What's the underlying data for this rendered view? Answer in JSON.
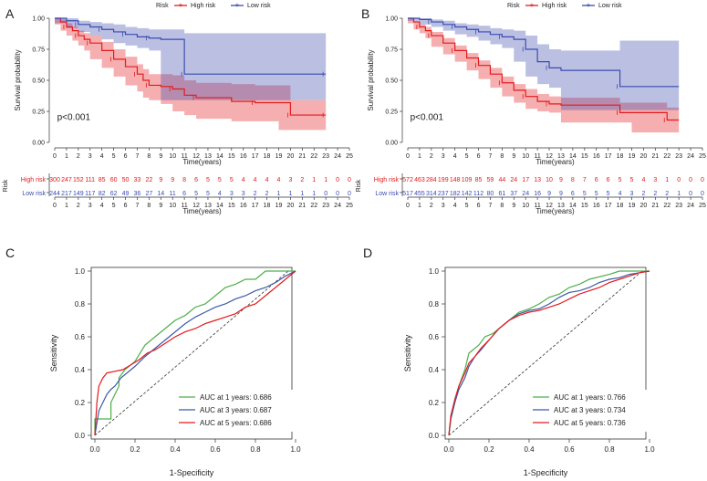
{
  "chart_data": [
    {
      "id": "A",
      "type": "line",
      "subtype": "kaplan-meier",
      "panel_label": "A",
      "legend_title": "Risk",
      "legend": [
        "High risk",
        "Low risk"
      ],
      "xlabel": "Time(years)",
      "ylabel": "Survival probability",
      "xlim": [
        0,
        25
      ],
      "ylim": [
        0,
        1
      ],
      "xticks": [
        "0",
        "1",
        "2",
        "3",
        "4",
        "5",
        "6",
        "7",
        "8",
        "9",
        "10",
        "11",
        "12",
        "13",
        "14",
        "15",
        "16",
        "17",
        "18",
        "19",
        "20",
        "21",
        "22",
        "23",
        "24",
        "25"
      ],
      "yticks": [
        "0.00",
        "0.25",
        "0.50",
        "0.75",
        "1.00"
      ],
      "pvalue": "p<0.001",
      "series": [
        {
          "name": "High risk",
          "color": "#e41a1c",
          "x": [
            0,
            0.5,
            1,
            1.5,
            2,
            2.5,
            3,
            4,
            5,
            6,
            7,
            7.5,
            8,
            9,
            10,
            11,
            12,
            15,
            17,
            19,
            20,
            21,
            23
          ],
          "y": [
            1.0,
            0.97,
            0.93,
            0.9,
            0.86,
            0.83,
            0.8,
            0.74,
            0.67,
            0.61,
            0.55,
            0.5,
            0.46,
            0.45,
            0.43,
            0.38,
            0.36,
            0.33,
            0.32,
            0.32,
            0.22,
            0.22,
            0.22
          ],
          "lower": [
            1.0,
            0.95,
            0.9,
            0.86,
            0.82,
            0.78,
            0.74,
            0.67,
            0.6,
            0.53,
            0.46,
            0.41,
            0.36,
            0.34,
            0.31,
            0.25,
            0.22,
            0.19,
            0.17,
            0.17,
            0.1,
            0.1,
            0.1
          ],
          "upper": [
            1.0,
            0.99,
            0.96,
            0.93,
            0.9,
            0.88,
            0.86,
            0.81,
            0.75,
            0.69,
            0.63,
            0.59,
            0.55,
            0.55,
            0.54,
            0.5,
            0.48,
            0.47,
            0.46,
            0.46,
            0.34,
            0.34,
            0.34
          ]
        },
        {
          "name": "Low risk",
          "color": "#3b4bb0",
          "x": [
            0,
            1,
            2,
            3,
            4,
            5,
            6,
            7,
            8,
            9,
            11,
            12,
            23
          ],
          "y": [
            1.0,
            0.98,
            0.95,
            0.93,
            0.91,
            0.89,
            0.87,
            0.85,
            0.84,
            0.83,
            0.55,
            0.55,
            0.55
          ],
          "lower": [
            1.0,
            0.96,
            0.92,
            0.89,
            0.86,
            0.83,
            0.8,
            0.78,
            0.76,
            0.74,
            0.34,
            0.34,
            0.34
          ],
          "upper": [
            1.0,
            1.0,
            0.98,
            0.97,
            0.96,
            0.95,
            0.93,
            0.92,
            0.91,
            0.91,
            0.88,
            0.88,
            0.88
          ]
        }
      ],
      "risk_table": {
        "title": "Risk",
        "rows": [
          {
            "label": "High risk",
            "color": "#e41a1c",
            "values": [
              "300",
              "247",
              "152",
              "111",
              "85",
              "60",
              "50",
              "33",
              "22",
              "9",
              "9",
              "8",
              "6",
              "5",
              "5",
              "5",
              "4",
              "4",
              "4",
              "4",
              "3",
              "2",
              "1",
              "1",
              "0",
              "0"
            ]
          },
          {
            "label": "Low risk",
            "color": "#3b4bb0",
            "values": [
              "244",
              "217",
              "149",
              "117",
              "82",
              "62",
              "49",
              "36",
              "27",
              "14",
              "11",
              "6",
              "5",
              "5",
              "4",
              "3",
              "3",
              "2",
              "2",
              "1",
              "1",
              "1",
              "1",
              "0",
              "0",
              "0"
            ]
          }
        ],
        "xlabel": "Time(years)"
      }
    },
    {
      "id": "B",
      "type": "line",
      "subtype": "kaplan-meier",
      "panel_label": "B",
      "legend_title": "Risk",
      "legend": [
        "High risk",
        "Low risk"
      ],
      "xlabel": "Time(years)",
      "ylabel": "Survival probability",
      "xlim": [
        0,
        25
      ],
      "ylim": [
        0,
        1
      ],
      "xticks": [
        "0",
        "1",
        "2",
        "3",
        "4",
        "5",
        "6",
        "7",
        "8",
        "9",
        "10",
        "11",
        "12",
        "13",
        "14",
        "15",
        "16",
        "17",
        "18",
        "19",
        "20",
        "21",
        "22",
        "23",
        "24",
        "25"
      ],
      "yticks": [
        "0.00",
        "0.25",
        "0.50",
        "0.75",
        "1.00"
      ],
      "pvalue": "p<0.001",
      "series": [
        {
          "name": "High risk",
          "color": "#e41a1c",
          "x": [
            0,
            0.5,
            1,
            1.5,
            2,
            3,
            4,
            5,
            6,
            7,
            8,
            9,
            10,
            11,
            12,
            13,
            18,
            19,
            22,
            23
          ],
          "y": [
            1.0,
            0.97,
            0.93,
            0.9,
            0.86,
            0.8,
            0.74,
            0.68,
            0.62,
            0.55,
            0.48,
            0.42,
            0.37,
            0.33,
            0.31,
            0.3,
            0.24,
            0.24,
            0.18,
            0.18
          ],
          "lower": [
            1.0,
            0.96,
            0.91,
            0.88,
            0.84,
            0.77,
            0.71,
            0.65,
            0.58,
            0.51,
            0.44,
            0.37,
            0.32,
            0.27,
            0.25,
            0.24,
            0.16,
            0.16,
            0.08,
            0.08
          ],
          "upper": [
            1.0,
            0.98,
            0.95,
            0.93,
            0.89,
            0.84,
            0.78,
            0.72,
            0.66,
            0.6,
            0.53,
            0.47,
            0.43,
            0.39,
            0.37,
            0.36,
            0.32,
            0.32,
            0.28,
            0.28
          ]
        },
        {
          "name": "Low risk",
          "color": "#3b4bb0",
          "x": [
            0,
            1,
            2,
            3,
            4,
            5,
            6,
            7,
            8,
            9,
            10,
            11,
            12,
            13,
            18,
            23
          ],
          "y": [
            1.0,
            0.99,
            0.97,
            0.95,
            0.93,
            0.91,
            0.89,
            0.87,
            0.85,
            0.83,
            0.75,
            0.65,
            0.6,
            0.58,
            0.45,
            0.45
          ],
          "lower": [
            1.0,
            0.98,
            0.95,
            0.93,
            0.9,
            0.87,
            0.85,
            0.82,
            0.79,
            0.76,
            0.65,
            0.53,
            0.47,
            0.44,
            0.26,
            0.26
          ],
          "upper": [
            1.0,
            1.0,
            0.99,
            0.98,
            0.96,
            0.95,
            0.94,
            0.92,
            0.91,
            0.9,
            0.86,
            0.79,
            0.75,
            0.74,
            0.82,
            0.82
          ]
        }
      ],
      "risk_table": {
        "title": "Risk",
        "rows": [
          {
            "label": "High risk",
            "color": "#e41a1c",
            "values": [
              "572",
              "463",
              "284",
              "199",
              "148",
              "109",
              "85",
              "59",
              "44",
              "24",
              "17",
              "13",
              "10",
              "9",
              "8",
              "7",
              "6",
              "6",
              "5",
              "5",
              "4",
              "3",
              "1",
              "0",
              "0",
              "0"
            ]
          },
          {
            "label": "Low risk",
            "color": "#3b4bb0",
            "values": [
              "517",
              "455",
              "314",
              "237",
              "182",
              "142",
              "112",
              "80",
              "61",
              "37",
              "24",
              "16",
              "9",
              "9",
              "6",
              "5",
              "5",
              "5",
              "4",
              "3",
              "2",
              "2",
              "2",
              "1",
              "0",
              "0"
            ]
          }
        ],
        "xlabel": "Time(years)"
      }
    },
    {
      "id": "C",
      "type": "line",
      "subtype": "roc",
      "panel_label": "C",
      "xlabel": "1-Specificity",
      "ylabel": "Sensitivity",
      "xlim": [
        0,
        1
      ],
      "ylim": [
        0,
        1
      ],
      "xticks": [
        "0.0",
        "0.2",
        "0.4",
        "0.6",
        "0.8",
        "1.0"
      ],
      "yticks": [
        "0.0",
        "0.2",
        "0.4",
        "0.6",
        "0.8",
        "1.0"
      ],
      "series": [
        {
          "name": "AUC at 1 years: 0.686",
          "color": "#4daf4a",
          "x": [
            0,
            0,
            0.03,
            0.08,
            0.08,
            0.12,
            0.12,
            0.15,
            0.2,
            0.25,
            0.3,
            0.35,
            0.4,
            0.45,
            0.5,
            0.55,
            0.6,
            0.65,
            0.7,
            0.75,
            0.8,
            0.85,
            0.9,
            1.0
          ],
          "y": [
            0,
            0.1,
            0.1,
            0.1,
            0.2,
            0.3,
            0.35,
            0.4,
            0.45,
            0.55,
            0.6,
            0.65,
            0.7,
            0.73,
            0.78,
            0.8,
            0.85,
            0.9,
            0.92,
            0.95,
            0.95,
            1.0,
            1.0,
            1.0
          ]
        },
        {
          "name": "AUC at 3 years: 0.687",
          "color": "#3b5aa6",
          "x": [
            0,
            0.02,
            0.04,
            0.06,
            0.08,
            0.1,
            0.13,
            0.16,
            0.2,
            0.25,
            0.3,
            0.35,
            0.4,
            0.45,
            0.5,
            0.55,
            0.6,
            0.65,
            0.7,
            0.75,
            0.8,
            0.85,
            0.9,
            0.95,
            1.0
          ],
          "y": [
            0,
            0.15,
            0.2,
            0.25,
            0.28,
            0.3,
            0.35,
            0.38,
            0.42,
            0.48,
            0.53,
            0.58,
            0.63,
            0.68,
            0.72,
            0.75,
            0.78,
            0.8,
            0.83,
            0.85,
            0.88,
            0.9,
            0.93,
            0.97,
            1.0
          ]
        },
        {
          "name": "AUC at 5 years: 0.686",
          "color": "#e41a1c",
          "x": [
            0,
            0.01,
            0.02,
            0.04,
            0.06,
            0.1,
            0.14,
            0.18,
            0.22,
            0.26,
            0.3,
            0.35,
            0.4,
            0.45,
            0.5,
            0.55,
            0.6,
            0.65,
            0.7,
            0.75,
            0.8,
            0.85,
            0.9,
            0.95,
            1.0
          ],
          "y": [
            0,
            0.2,
            0.3,
            0.35,
            0.38,
            0.39,
            0.4,
            0.43,
            0.46,
            0.5,
            0.52,
            0.56,
            0.6,
            0.63,
            0.65,
            0.68,
            0.7,
            0.72,
            0.74,
            0.78,
            0.8,
            0.85,
            0.9,
            0.95,
            1.0
          ]
        }
      ],
      "diagonal": true
    },
    {
      "id": "D",
      "type": "line",
      "subtype": "roc",
      "panel_label": "D",
      "xlabel": "1-Specificity",
      "ylabel": "Sensitivity",
      "xlim": [
        0,
        1
      ],
      "ylim": [
        0,
        1
      ],
      "xticks": [
        "0.0",
        "0.2",
        "0.4",
        "0.6",
        "0.8",
        "1.0"
      ],
      "yticks": [
        "0.0",
        "0.2",
        "0.4",
        "0.6",
        "0.8",
        "1.0"
      ],
      "series": [
        {
          "name": "AUC at 1 years: 0.766",
          "color": "#4daf4a",
          "x": [
            0,
            0.01,
            0.03,
            0.05,
            0.08,
            0.1,
            0.12,
            0.15,
            0.18,
            0.22,
            0.26,
            0.3,
            0.35,
            0.4,
            0.45,
            0.5,
            0.55,
            0.6,
            0.65,
            0.7,
            0.8,
            0.85,
            0.9,
            1.0
          ],
          "y": [
            0,
            0.1,
            0.2,
            0.3,
            0.4,
            0.5,
            0.52,
            0.55,
            0.6,
            0.62,
            0.66,
            0.7,
            0.75,
            0.77,
            0.8,
            0.84,
            0.86,
            0.9,
            0.92,
            0.95,
            0.98,
            1.0,
            1.0,
            1.0
          ]
        },
        {
          "name": "AUC at 3 years: 0.734",
          "color": "#3b5aa6",
          "x": [
            0,
            0.01,
            0.03,
            0.05,
            0.08,
            0.1,
            0.13,
            0.16,
            0.2,
            0.25,
            0.3,
            0.35,
            0.4,
            0.45,
            0.5,
            0.55,
            0.6,
            0.65,
            0.7,
            0.75,
            0.8,
            0.85,
            0.9,
            0.95,
            1.0
          ],
          "y": [
            0,
            0.1,
            0.2,
            0.28,
            0.35,
            0.42,
            0.48,
            0.52,
            0.58,
            0.65,
            0.7,
            0.74,
            0.76,
            0.77,
            0.8,
            0.84,
            0.87,
            0.88,
            0.9,
            0.93,
            0.95,
            0.96,
            0.98,
            0.99,
            1.0
          ]
        },
        {
          "name": "AUC at 5 years: 0.736",
          "color": "#e41a1c",
          "x": [
            0,
            0.01,
            0.03,
            0.05,
            0.08,
            0.1,
            0.13,
            0.16,
            0.2,
            0.25,
            0.3,
            0.35,
            0.4,
            0.45,
            0.5,
            0.55,
            0.6,
            0.65,
            0.7,
            0.75,
            0.8,
            0.85,
            0.9,
            0.95,
            1.0
          ],
          "y": [
            0,
            0.12,
            0.22,
            0.3,
            0.38,
            0.44,
            0.48,
            0.53,
            0.58,
            0.65,
            0.7,
            0.73,
            0.75,
            0.76,
            0.78,
            0.8,
            0.83,
            0.86,
            0.88,
            0.9,
            0.93,
            0.95,
            0.97,
            0.99,
            1.0
          ]
        }
      ],
      "diagonal": true
    }
  ]
}
